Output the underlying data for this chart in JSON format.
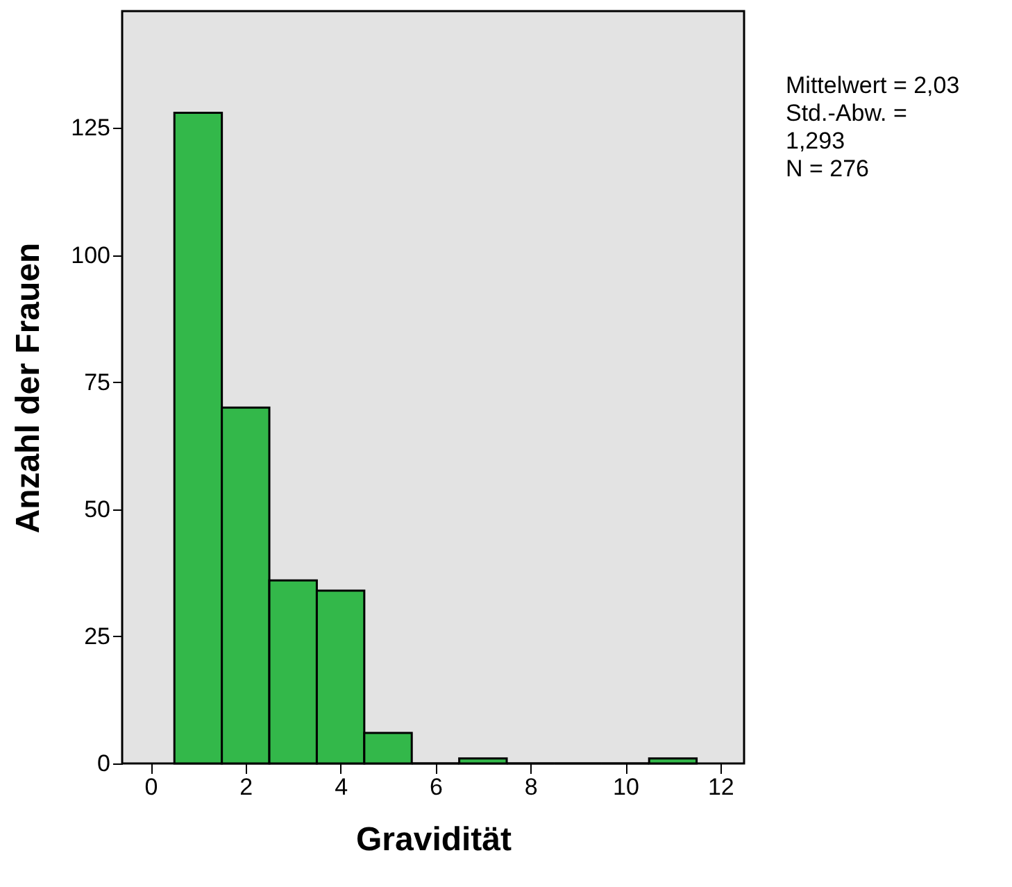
{
  "chart_data": {
    "type": "histogram",
    "xlabel": "Gravidität",
    "ylabel": "Anzahl der Frauen",
    "bins": [
      0.5,
      1.5,
      2.5,
      3.5,
      4.5,
      5.5,
      6.5,
      7.5,
      8.5,
      9.5,
      10.5,
      11.5
    ],
    "values": [
      128,
      70,
      36,
      34,
      6,
      0,
      1,
      0,
      0,
      0,
      1
    ],
    "color": "#33b84a",
    "xlim": [
      -0.6,
      12.5
    ],
    "xticks": [
      0,
      2,
      4,
      6,
      8,
      10,
      12
    ],
    "ylim": [
      0,
      148
    ],
    "yticks": [
      0,
      25,
      50,
      75,
      100,
      125
    ],
    "grid": false,
    "annotations": [
      "Mittelwert = 2,03",
      "Std.-Abw. =",
      "1,293",
      "N = 276"
    ]
  }
}
